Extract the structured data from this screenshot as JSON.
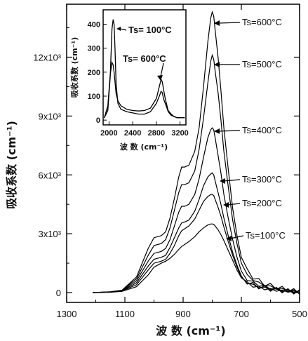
{
  "chart_data": [
    {
      "type": "line",
      "xlabel": "波 数 (cm⁻¹)",
      "ylabel": "吸收系数 (cm⁻¹)",
      "x_ticks": [
        1300,
        1100,
        900,
        700,
        500
      ],
      "y_tick_labels": [
        "0",
        "3x10³",
        "6x10³",
        "9x10³",
        "12x10³"
      ],
      "y_ticks": [
        0,
        3000,
        6000,
        9000,
        12000
      ],
      "xlim": [
        1300,
        500
      ],
      "ylim": [
        -500,
        14700
      ],
      "series": [
        {
          "name": "Ts=600°C",
          "x": [
            1210,
            1150,
            1110,
            1060,
            1020,
            1000,
            975,
            960,
            945,
            930,
            915,
            905,
            895,
            880,
            860,
            845,
            830,
            815,
            805,
            800,
            795,
            790,
            780,
            770,
            760,
            745,
            730,
            715,
            700,
            680,
            660,
            640,
            620,
            600,
            580,
            560,
            540,
            520,
            500
          ],
          "y": [
            0,
            40,
            120,
            800,
            2250,
            2800,
            2900,
            3100,
            3800,
            4800,
            5900,
            6400,
            6400,
            6500,
            7200,
            8400,
            10500,
            12800,
            14000,
            14300,
            14100,
            13400,
            12000,
            10300,
            8400,
            6300,
            4300,
            2900,
            1800,
            1100,
            800,
            600,
            450,
            350,
            280,
            200,
            150,
            80,
            30
          ]
        },
        {
          "name": "Ts=500°C",
          "x": [
            1210,
            1150,
            1110,
            1060,
            1020,
            1000,
            975,
            960,
            945,
            930,
            915,
            905,
            895,
            880,
            860,
            845,
            830,
            815,
            805,
            800,
            795,
            790,
            780,
            770,
            760,
            745,
            730,
            715,
            700,
            680,
            660,
            640,
            620,
            600,
            580,
            560,
            540,
            520,
            500
          ],
          "y": [
            0,
            40,
            120,
            700,
            1900,
            2400,
            2500,
            2700,
            3300,
            4200,
            5100,
            5500,
            5500,
            5600,
            6200,
            7300,
            8900,
            10700,
            11800,
            12100,
            11900,
            11300,
            10200,
            8800,
            7200,
            5400,
            3700,
            2500,
            1500,
            900,
            650,
            500,
            380,
            300,
            230,
            170,
            120,
            70,
            30
          ]
        },
        {
          "name": "Ts=400°C",
          "x": [
            1210,
            1150,
            1110,
            1060,
            1020,
            1000,
            975,
            960,
            945,
            930,
            915,
            905,
            895,
            880,
            860,
            845,
            830,
            815,
            805,
            800,
            795,
            790,
            780,
            770,
            760,
            745,
            730,
            715,
            700,
            680,
            660,
            640,
            620,
            600,
            580,
            560,
            540,
            520,
            500
          ],
          "y": [
            0,
            30,
            100,
            600,
            1600,
            2000,
            2100,
            2250,
            2700,
            3400,
            4100,
            4400,
            4400,
            4500,
            5000,
            5800,
            6900,
            7900,
            8300,
            8400,
            8300,
            7900,
            7000,
            6100,
            5000,
            3800,
            2700,
            1800,
            1100,
            700,
            500,
            400,
            300,
            240,
            190,
            140,
            100,
            60,
            30
          ]
        },
        {
          "name": "Ts=300°C",
          "x": [
            1210,
            1150,
            1110,
            1060,
            1020,
            1000,
            975,
            960,
            945,
            930,
            915,
            905,
            895,
            880,
            860,
            845,
            830,
            815,
            805,
            800,
            795,
            790,
            780,
            770,
            760,
            745,
            730,
            715,
            700,
            680,
            660,
            640,
            620,
            600,
            580,
            560,
            540,
            520,
            500
          ],
          "y": [
            0,
            30,
            90,
            500,
            1350,
            1700,
            1800,
            1900,
            2300,
            2800,
            3300,
            3550,
            3600,
            3700,
            4150,
            4750,
            5450,
            5900,
            6050,
            6100,
            6000,
            5700,
            5100,
            4500,
            3800,
            2900,
            2050,
            1400,
            850,
            550,
            400,
            310,
            240,
            190,
            150,
            110,
            80,
            50,
            30
          ]
        },
        {
          "name": "Ts=200°C",
          "x": [
            1210,
            1150,
            1110,
            1060,
            1020,
            1000,
            975,
            960,
            945,
            930,
            915,
            905,
            895,
            880,
            860,
            845,
            830,
            815,
            805,
            800,
            795,
            790,
            780,
            770,
            760,
            745,
            730,
            715,
            700,
            680,
            660,
            640,
            620,
            600,
            580,
            560,
            540,
            520,
            500
          ],
          "y": [
            0,
            30,
            80,
            400,
            1150,
            1500,
            1600,
            1700,
            2000,
            2400,
            2900,
            3150,
            3250,
            3400,
            3750,
            4200,
            4650,
            4900,
            5000,
            5000,
            4950,
            4750,
            4350,
            3900,
            3350,
            2600,
            1900,
            1300,
            800,
            520,
            380,
            300,
            230,
            180,
            140,
            100,
            70,
            40,
            20
          ]
        },
        {
          "name": "Ts=100°C",
          "x": [
            1210,
            1150,
            1110,
            1060,
            1020,
            1000,
            975,
            960,
            945,
            930,
            915,
            905,
            895,
            880,
            860,
            845,
            830,
            815,
            805,
            800,
            795,
            790,
            780,
            770,
            760,
            745,
            730,
            715,
            700,
            680,
            660,
            640,
            620,
            600,
            580,
            560,
            540,
            520,
            500
          ],
          "y": [
            0,
            20,
            60,
            300,
            900,
            1300,
            1500,
            1600,
            1750,
            1950,
            2200,
            2350,
            2450,
            2600,
            2850,
            3100,
            3300,
            3450,
            3500,
            3500,
            3480,
            3400,
            3200,
            2950,
            2650,
            2150,
            1650,
            1150,
            750,
            480,
            340,
            260,
            200,
            160,
            120,
            90,
            60,
            40,
            20
          ]
        }
      ],
      "annotations": [
        "Ts=600°C",
        "Ts=500°C",
        "Ts=400°C",
        "Ts=300°C",
        "Ts=200°C",
        "Ts=100°C"
      ]
    },
    {
      "type": "line",
      "inset": true,
      "xlabel": "波 数 (cm⁻¹)",
      "ylabel": "吸收系数 (cm⁻¹)",
      "x_ticks": [
        2000,
        2400,
        2800,
        3200
      ],
      "y_ticks": [
        0,
        100,
        200,
        300,
        400
      ],
      "xlim": [
        1900,
        3300
      ],
      "ylim": [
        -20,
        460
      ],
      "series": [
        {
          "name": "Ts=100°C",
          "x": [
            1920,
            1980,
            2020,
            2050,
            2070,
            2085,
            2100,
            2120,
            2150,
            2200,
            2300,
            2400,
            2500,
            2600,
            2700,
            2800,
            2850,
            2880,
            2900,
            2920,
            2950,
            2980,
            3000,
            3050,
            3100,
            3150,
            3200,
            3280
          ],
          "y": [
            10,
            40,
            180,
            380,
            420,
            400,
            300,
            150,
            70,
            45,
            35,
            30,
            25,
            25,
            35,
            70,
            100,
            120,
            115,
            90,
            70,
            50,
            35,
            20,
            15,
            10,
            10,
            10
          ]
        },
        {
          "name": "Ts=600°C",
          "x": [
            1920,
            1980,
            2020,
            2050,
            2070,
            2085,
            2100,
            2120,
            2150,
            2200,
            2300,
            2400,
            2500,
            2600,
            2700,
            2800,
            2850,
            2880,
            2900,
            2920,
            2950,
            2980,
            3000,
            3050,
            3100,
            3150,
            3200,
            3280
          ],
          "y": [
            10,
            60,
            190,
            240,
            230,
            200,
            160,
            110,
            80,
            60,
            45,
            40,
            38,
            40,
            50,
            90,
            140,
            170,
            160,
            130,
            90,
            60,
            40,
            25,
            15,
            10,
            10,
            10
          ]
        }
      ],
      "annotations": [
        "Ts= 100°C",
        "Ts= 600°C"
      ]
    }
  ]
}
